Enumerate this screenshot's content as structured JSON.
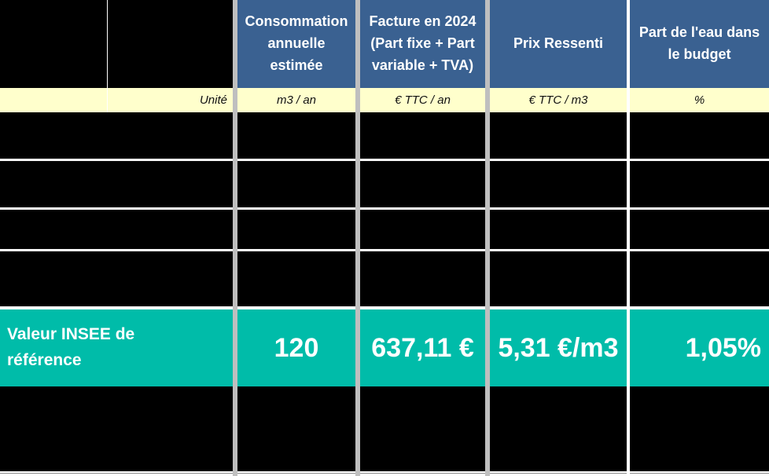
{
  "colors": {
    "header_blue": "#3A6191",
    "unit_cream": "#FFFFCC",
    "teal": "#00BCA9",
    "gutter_gray": "#BFBFBF",
    "row_black": "#000000"
  },
  "header": {
    "consommation": "Consommation\nannuelle\nestimée",
    "facture": "Facture en 2024\n(Part fixe + Part\nvariable + TVA)",
    "prix": "Prix Ressenti",
    "part": "Part de l'eau dans\nle budget"
  },
  "unit_row": {
    "label": "Unité",
    "consommation": "m3 / an",
    "facture": "€ TTC / an",
    "prix": "€ TTC / m3",
    "part": "%"
  },
  "insee_row": {
    "label": "Valeur INSEE de\nréférence",
    "consommation": "120",
    "facture": "637,11 €",
    "prix": "5,31 €/m3",
    "part": "1,05%"
  }
}
